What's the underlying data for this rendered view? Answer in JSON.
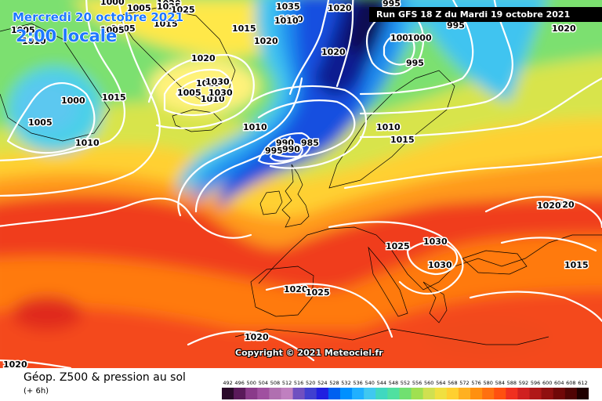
{
  "header": {
    "date": "Mercredi 20 octobre 2021",
    "time": "2:00 locale",
    "run": "Run GFS 18 Z du Mardi 19 octobre 2021"
  },
  "copyright": "Copyright © 2021 Meteociel.fr",
  "footer": {
    "title": "Géop. Z500 & pression au sol",
    "subtitle": "(+ 6h)"
  },
  "legend": {
    "values": [
      492,
      496,
      500,
      504,
      508,
      512,
      516,
      520,
      524,
      528,
      532,
      536,
      540,
      544,
      548,
      552,
      556,
      560,
      564,
      568,
      572,
      576,
      580,
      584,
      588,
      592,
      596,
      600,
      604,
      608,
      612
    ],
    "colors": [
      "#2a0a2a",
      "#5a1a5a",
      "#8a3a8a",
      "#a050a0",
      "#b070b0",
      "#c080c0",
      "#7050c0",
      "#4040d0",
      "#2020e0",
      "#0060f0",
      "#0090ff",
      "#20b0ff",
      "#40c8f0",
      "#40d8c0",
      "#50e0a0",
      "#70e070",
      "#a0e050",
      "#d0e050",
      "#f0e040",
      "#ffd030",
      "#ffb020",
      "#ff9010",
      "#ff7010",
      "#ff5010",
      "#f03020",
      "#d02020",
      "#b01818",
      "#901010",
      "#700808",
      "#500404",
      "#200000"
    ]
  },
  "isobar_labels": [
    {
      "text": "1005"
    },
    {
      "text": "1000"
    },
    {
      "text": "1005"
    },
    {
      "text": "1005"
    },
    {
      "text": "1020"
    },
    {
      "text": "1015"
    },
    {
      "text": "1010"
    },
    {
      "text": "1005"
    },
    {
      "text": "1015"
    },
    {
      "text": "1020"
    },
    {
      "text": "1035"
    },
    {
      "text": "1030"
    },
    {
      "text": "1025"
    },
    {
      "text": "1025"
    },
    {
      "text": "1020"
    },
    {
      "text": "1015"
    },
    {
      "text": "1005"
    },
    {
      "text": "1010"
    },
    {
      "text": "995"
    },
    {
      "text": "1005"
    },
    {
      "text": "1000"
    },
    {
      "text": "995"
    },
    {
      "text": "995"
    },
    {
      "text": "1020"
    },
    {
      "text": "1020"
    },
    {
      "text": "1010"
    },
    {
      "text": "1015"
    },
    {
      "text": "1000"
    },
    {
      "text": "1005"
    },
    {
      "text": "1015"
    },
    {
      "text": "1010"
    },
    {
      "text": "990"
    },
    {
      "text": "985"
    },
    {
      "text": "995"
    },
    {
      "text": "990"
    },
    {
      "text": "1010"
    },
    {
      "text": "1015"
    },
    {
      "text": "1020"
    },
    {
      "text": "1020"
    },
    {
      "text": "1025"
    },
    {
      "text": "1030"
    },
    {
      "text": "1030"
    },
    {
      "text": "1015"
    },
    {
      "text": "1020"
    },
    {
      "text": "1025"
    },
    {
      "text": "1020"
    },
    {
      "text": "1020"
    },
    {
      "text": "1030"
    },
    {
      "text": "1020"
    },
    {
      "text": "1030"
    },
    {
      "text": "1010"
    }
  ]
}
